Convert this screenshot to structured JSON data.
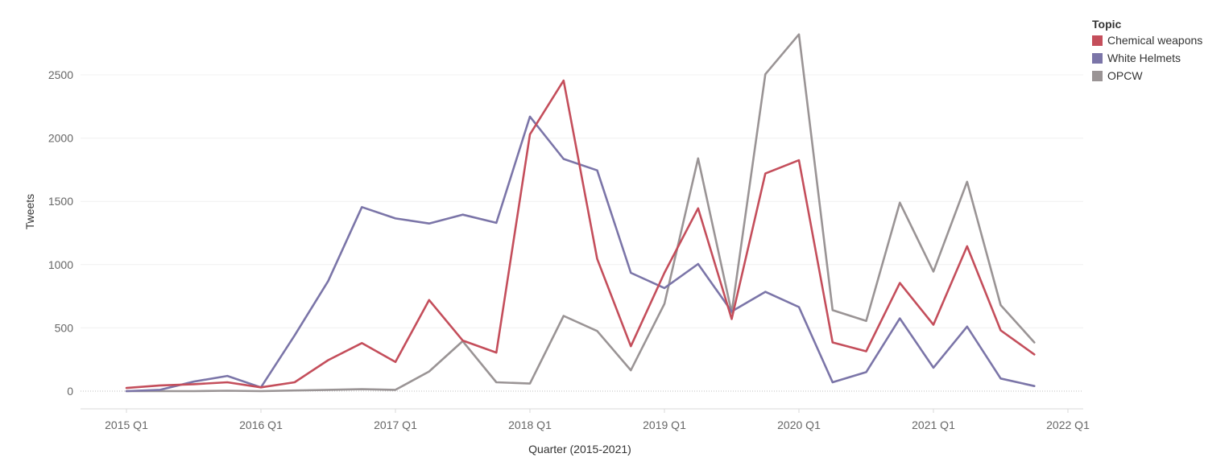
{
  "chart_data": {
    "type": "line",
    "title": "",
    "xlabel": "Quarter (2015-2021)",
    "ylabel": "Tweets",
    "x_tick_labels": [
      "2015 Q1",
      "2016 Q1",
      "2017 Q1",
      "2018 Q1",
      "2019 Q1",
      "2020 Q1",
      "2021 Q1",
      "2022 Q1"
    ],
    "y_ticks": [
      0,
      500,
      1000,
      1500,
      2000,
      2500
    ],
    "ylim": [
      -150,
      2950
    ],
    "xlim": [
      "2014 Q4",
      "2022 Q1"
    ],
    "grid": true,
    "legend_placement": "top-right",
    "legend_title": "Topic",
    "categories": [
      "2015 Q1",
      "2015 Q2",
      "2015 Q3",
      "2015 Q4",
      "2016 Q1",
      "2016 Q2",
      "2016 Q3",
      "2016 Q4",
      "2017 Q1",
      "2017 Q2",
      "2017 Q3",
      "2017 Q4",
      "2018 Q1",
      "2018 Q2",
      "2018 Q3",
      "2018 Q4",
      "2019 Q1",
      "2019 Q2",
      "2019 Q3",
      "2019 Q4",
      "2020 Q1",
      "2020 Q2",
      "2020 Q3",
      "2020 Q4",
      "2021 Q1",
      "2021 Q2",
      "2021 Q3",
      "2021 Q4"
    ],
    "series": [
      {
        "name": "Chemical weapons",
        "color": "#c44e5b",
        "values": [
          25,
          45,
          55,
          70,
          30,
          70,
          245,
          380,
          230,
          720,
          400,
          305,
          2030,
          2455,
          1045,
          355,
          935,
          1445,
          570,
          1720,
          1825,
          385,
          315,
          855,
          525,
          1145,
          480,
          290
        ]
      },
      {
        "name": "White Helmets",
        "color": "#7b75a8",
        "values": [
          0,
          10,
          75,
          120,
          30,
          440,
          870,
          1455,
          1365,
          1325,
          1395,
          1330,
          2170,
          1835,
          1745,
          935,
          815,
          1005,
          630,
          785,
          665,
          70,
          150,
          575,
          185,
          510,
          100,
          40
        ]
      },
      {
        "name": "OPCW",
        "color": "#9a9495",
        "values": [
          0,
          0,
          0,
          3,
          0,
          5,
          10,
          15,
          10,
          155,
          395,
          70,
          60,
          595,
          475,
          165,
          690,
          1840,
          620,
          2505,
          2820,
          640,
          555,
          1490,
          945,
          1655,
          680,
          385
        ]
      }
    ]
  }
}
